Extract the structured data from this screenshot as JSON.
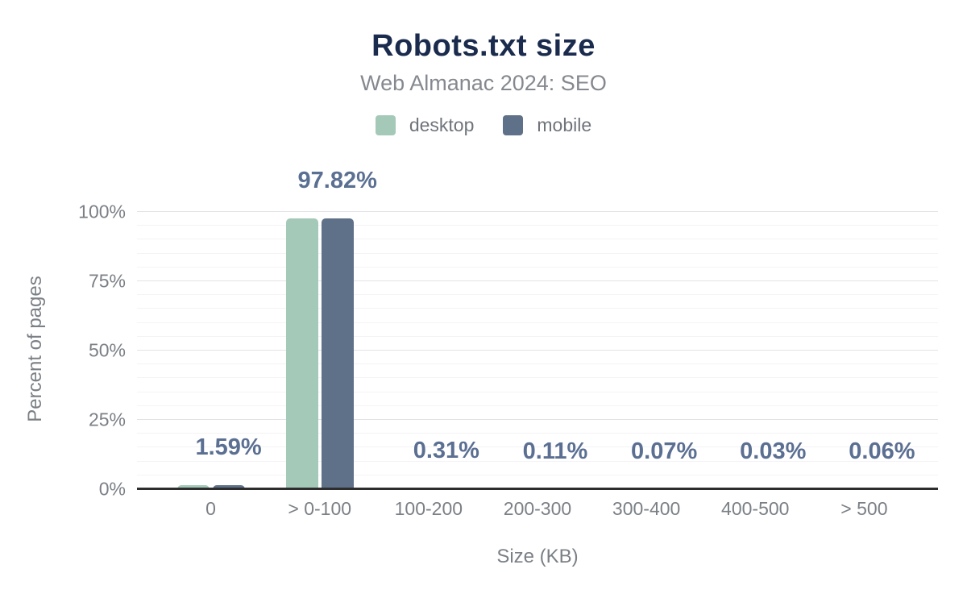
{
  "chart_data": {
    "type": "bar",
    "title": "Robots.txt size",
    "subtitle": "Web Almanac 2024: SEO",
    "xlabel": "Size (KB)",
    "ylabel": "Percent of pages",
    "categories": [
      "0",
      "> 0-100",
      "100-200",
      "200-300",
      "300-400",
      "400-500",
      "> 500"
    ],
    "series": [
      {
        "name": "desktop",
        "color": "#a5c9b8",
        "values": [
          1.59,
          97.82,
          0.31,
          0.11,
          0.07,
          0.03,
          0.06
        ]
      },
      {
        "name": "mobile",
        "color": "#5f7089",
        "values": [
          1.59,
          97.82,
          0.31,
          0.11,
          0.07,
          0.03,
          0.06
        ]
      }
    ],
    "data_labels": [
      "1.59%",
      "97.82%",
      "0.31%",
      "0.11%",
      "0.07%",
      "0.03%",
      "0.06%"
    ],
    "yticks": [
      "0%",
      "25%",
      "50%",
      "75%",
      "100%"
    ],
    "ylim": [
      0,
      100
    ],
    "grid": {
      "major_every_pct": 25,
      "minor_every_pct": 5,
      "vertical_lines": false
    },
    "legend_position": "top",
    "colors": {
      "title": "#1a2b4d",
      "subtitle": "#85898f",
      "axis_text": "#7b8086",
      "data_label": "#5b6f92",
      "axis_line": "#2d2d2d",
      "gridline_major": "#e3e3e7",
      "gridline_minor": "#f4f4f6"
    }
  }
}
